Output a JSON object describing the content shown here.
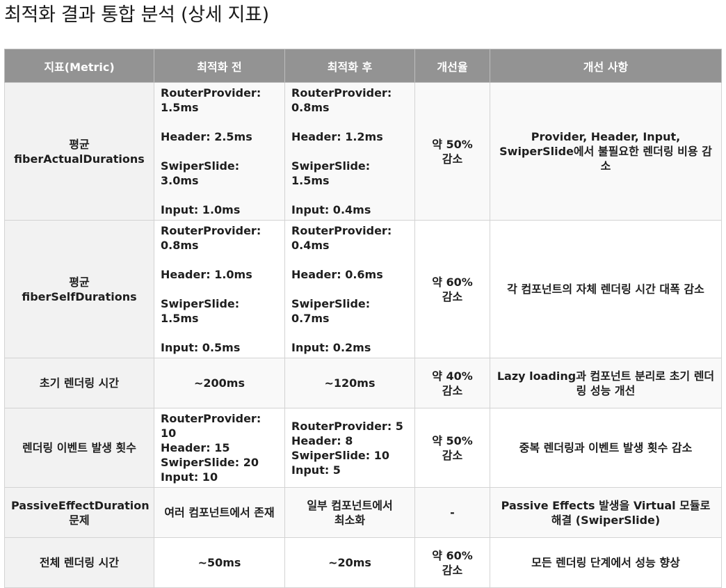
{
  "page": {
    "title": "최적화 결과 통합 분석 (상세 지표)"
  },
  "table": {
    "headers": [
      "지표(Metric)",
      "최적화 전",
      "최적화 후",
      "개선율",
      "개선 사항"
    ],
    "rows": [
      {
        "metric": [
          "평균",
          "fiberActualDurations"
        ],
        "before": [
          "RouterProvider: 1.5ms",
          "Header: 2.5ms",
          "SwiperSlide: 3.0ms",
          "Input: 1.0ms"
        ],
        "after": [
          "RouterProvider: 0.8ms",
          "Header: 1.2ms",
          "SwiperSlide: 1.5ms",
          "Input: 0.4ms"
        ],
        "rate": [
          "약 50%",
          "감소"
        ],
        "note": "Provider, Header, Input, SwiperSlide에서 불필요한 렌더링 비용 감소"
      },
      {
        "metric": [
          "평균",
          "fiberSelfDurations"
        ],
        "before": [
          "RouterProvider: 0.8ms",
          "Header: 1.0ms",
          "SwiperSlide: 1.5ms",
          "Input: 0.5ms"
        ],
        "after": [
          "RouterProvider: 0.4ms",
          "Header: 0.6ms",
          "SwiperSlide: 0.7ms",
          "Input: 0.2ms"
        ],
        "rate": [
          "약 60%",
          "감소"
        ],
        "note": "각 컴포넌트의 자체 렌더링 시간 대폭 감소"
      },
      {
        "metric": [
          "초기 렌더링 시간"
        ],
        "before": [
          "~200ms"
        ],
        "after": [
          "~120ms"
        ],
        "rate": [
          "약 40%",
          "감소"
        ],
        "note": "Lazy loading과 컴포넌트 분리로 초기 렌더링 성능 개선"
      },
      {
        "metric": [
          "렌더링 이벤트 발생 횟수"
        ],
        "before": [
          "RouterProvider: 10",
          "Header: 15",
          "SwiperSlide: 20",
          "Input: 10"
        ],
        "after": [
          "RouterProvider: 5",
          "Header: 8",
          "SwiperSlide: 10",
          "Input: 5"
        ],
        "rate": [
          "약 50%",
          "감소"
        ],
        "note": "중복 렌더링과 이벤트 발생 횟수 감소"
      },
      {
        "metric": [
          "PassiveEffectDuration",
          "문제"
        ],
        "before": [
          "여러 컴포넌트에서 존재"
        ],
        "after": [
          "일부 컴포넌트에서",
          "최소화"
        ],
        "rate": [
          "-"
        ],
        "note": "Passive Effects 발생을 Virtual 모듈로 해결 (SwiperSlide)"
      },
      {
        "metric": [
          "전체 렌더링 시간"
        ],
        "before": [
          "~50ms"
        ],
        "after": [
          "~20ms"
        ],
        "rate": [
          "약 60%",
          "감소"
        ],
        "note": "모든 렌더링 단계에서 성능 향상"
      }
    ]
  }
}
